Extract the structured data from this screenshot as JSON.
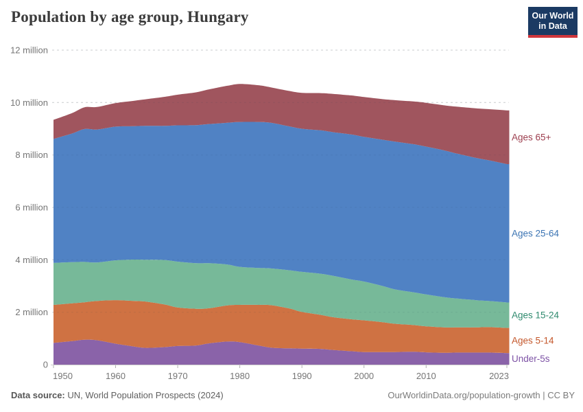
{
  "header": {
    "title": "Population by age group, Hungary",
    "logo_line1": "Our World",
    "logo_line2": "in Data",
    "logo_bg": "#1b3a63",
    "logo_red": "#d0363c"
  },
  "footer": {
    "source_label": "Data source:",
    "source_text": " UN, World Population Prospects (2024)",
    "credit": "OurWorldinData.org/population-growth | CC BY"
  },
  "chart_data": {
    "type": "area",
    "stacked": true,
    "title": "Population by age group, Hungary",
    "xlabel": "",
    "ylabel": "",
    "ylim": [
      0,
      12
    ],
    "unit": "million people",
    "grid": "dashed-horizontal",
    "legend_position": "right",
    "x": [
      1950,
      1953,
      1955,
      1957,
      1960,
      1963,
      1965,
      1968,
      1970,
      1973,
      1975,
      1978,
      1980,
      1983,
      1985,
      1988,
      1990,
      1993,
      1995,
      1998,
      2000,
      2003,
      2005,
      2008,
      2010,
      2013,
      2015,
      2018,
      2020,
      2023
    ],
    "series": [
      {
        "name": "Under-5s",
        "color": "#8a63a9",
        "label_color": "#7d52a5",
        "values": [
          0.83,
          0.9,
          0.95,
          0.93,
          0.8,
          0.69,
          0.64,
          0.67,
          0.71,
          0.73,
          0.81,
          0.88,
          0.86,
          0.73,
          0.65,
          0.62,
          0.61,
          0.6,
          0.56,
          0.51,
          0.48,
          0.48,
          0.48,
          0.49,
          0.47,
          0.45,
          0.46,
          0.46,
          0.46,
          0.44
        ]
      },
      {
        "name": "Ages 5-14",
        "color": "#cf7243",
        "label_color": "#c4572b",
        "values": [
          1.45,
          1.44,
          1.43,
          1.5,
          1.66,
          1.74,
          1.76,
          1.62,
          1.47,
          1.4,
          1.34,
          1.38,
          1.42,
          1.55,
          1.62,
          1.52,
          1.4,
          1.3,
          1.25,
          1.22,
          1.21,
          1.14,
          1.08,
          1.02,
          0.99,
          0.97,
          0.96,
          0.96,
          0.97,
          0.96
        ]
      },
      {
        "name": "Ages 15-24",
        "color": "#77b999",
        "label_color": "#2f8a6e",
        "values": [
          1.6,
          1.57,
          1.54,
          1.47,
          1.52,
          1.58,
          1.6,
          1.7,
          1.75,
          1.74,
          1.72,
          1.56,
          1.45,
          1.41,
          1.4,
          1.46,
          1.53,
          1.57,
          1.58,
          1.52,
          1.48,
          1.38,
          1.31,
          1.25,
          1.22,
          1.15,
          1.1,
          1.04,
          1.0,
          0.97
        ]
      },
      {
        "name": "Ages 25-64",
        "color": "#5082c4",
        "label_color": "#3b74b3",
        "values": [
          4.73,
          4.91,
          5.07,
          5.07,
          5.1,
          5.09,
          5.11,
          5.12,
          5.2,
          5.27,
          5.31,
          5.41,
          5.53,
          5.57,
          5.56,
          5.49,
          5.46,
          5.47,
          5.48,
          5.53,
          5.52,
          5.58,
          5.64,
          5.65,
          5.64,
          5.6,
          5.53,
          5.43,
          5.37,
          5.28
        ]
      },
      {
        "name": "Ages 65+",
        "color": "#a0555e",
        "label_color": "#9c3e4e",
        "values": [
          0.73,
          0.78,
          0.83,
          0.86,
          0.9,
          0.97,
          1.02,
          1.11,
          1.17,
          1.25,
          1.32,
          1.41,
          1.45,
          1.4,
          1.35,
          1.35,
          1.37,
          1.42,
          1.46,
          1.49,
          1.52,
          1.55,
          1.58,
          1.63,
          1.67,
          1.72,
          1.79,
          1.89,
          1.95,
          2.05
        ]
      }
    ],
    "yticks": [
      0,
      2,
      4,
      6,
      8,
      10,
      12
    ],
    "ytick_labels": [
      "0",
      "2 million",
      "4 million",
      "6 million",
      "8 million",
      "10 million",
      "12 million"
    ],
    "xticks": [
      1950,
      1960,
      1970,
      1980,
      1990,
      2000,
      2010,
      2023
    ],
    "xtick_labels": [
      "1950",
      "1960",
      "1970",
      "1980",
      "1990",
      "2000",
      "2010",
      "2023"
    ]
  }
}
